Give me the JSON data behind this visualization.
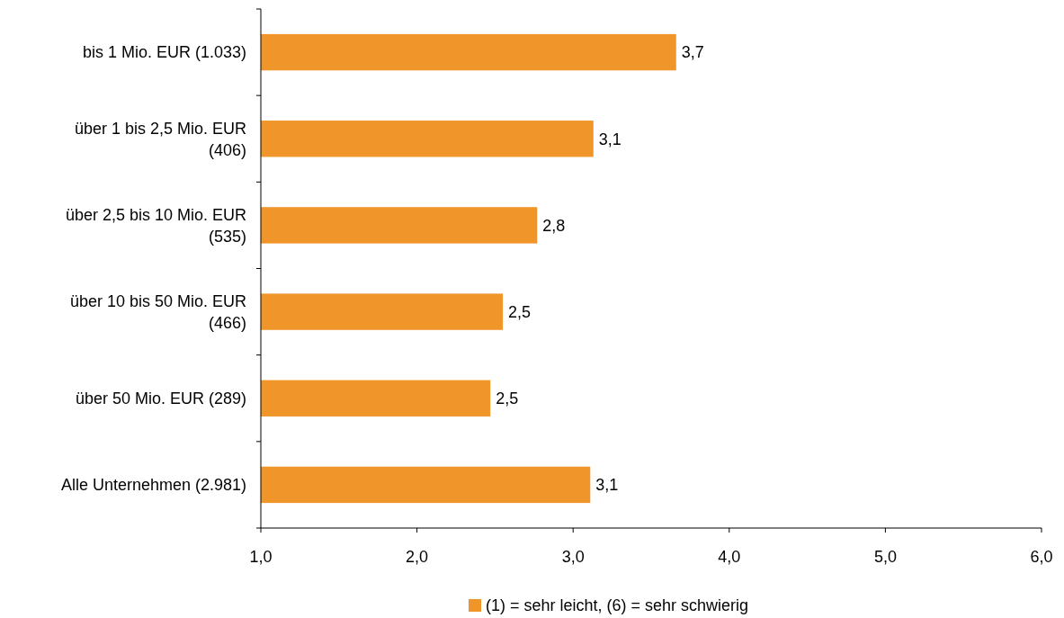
{
  "chart_data": {
    "type": "bar",
    "orientation": "horizontal",
    "categories": [
      "bis 1 Mio. EUR (1.033)",
      "über 1 bis 2,5 Mio. EUR (406)",
      "über 2,5 bis 10 Mio. EUR (535)",
      "über 10 bis 50 Mio. EUR (466)",
      "über 50 Mio. EUR (289)",
      "Alle Unternehmen (2.981)"
    ],
    "series": [
      {
        "name": "(1) = sehr leicht, (6) = sehr schwierig",
        "color": "#f0952a",
        "values": [
          3.66,
          3.13,
          2.77,
          2.55,
          2.47,
          3.11
        ],
        "value_labels": [
          "3,7",
          "3,1",
          "2,8",
          "2,5",
          "2,5",
          "3,1"
        ]
      }
    ],
    "xlim": [
      1,
      6
    ],
    "xticks": [
      {
        "value": 1,
        "label": "1,0"
      },
      {
        "value": 2,
        "label": "2,0"
      },
      {
        "value": 3,
        "label": "3,0"
      },
      {
        "value": 4,
        "label": "4,0"
      },
      {
        "value": 5,
        "label": "5,0"
      },
      {
        "value": 6,
        "label": "6,0"
      }
    ],
    "grid": false,
    "legend": "bottom"
  }
}
